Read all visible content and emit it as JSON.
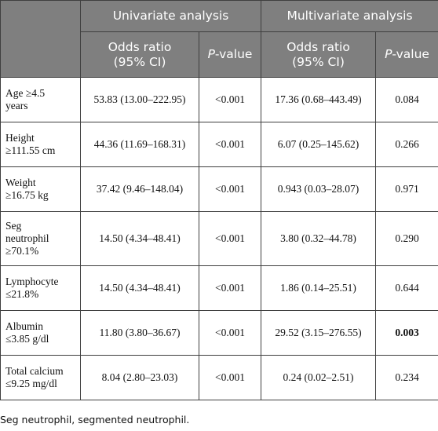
{
  "header": {
    "univariate": "Univariate analysis",
    "multivariate": "Multivariate analysis",
    "or_line1": "Odds ratio",
    "or_line2": "(95% CI)",
    "p_italic": "P",
    "p_rest": "-value"
  },
  "rows": [
    {
      "label_l1": "Age ≥4.5",
      "label_l2": "years",
      "label_l3": "",
      "uni_or": "53.83 (13.00–222.95)",
      "uni_p": "<0.001",
      "multi_or": "17.36 (0.68–443.49)",
      "multi_p": "0.084",
      "bold": false
    },
    {
      "label_l1": "Height",
      "label_l2": "≥111.55 cm",
      "label_l3": "",
      "uni_or": "44.36 (11.69–168.31)",
      "uni_p": "<0.001",
      "multi_or": "6.07 (0.25–145.62)",
      "multi_p": "0.266",
      "bold": false
    },
    {
      "label_l1": "Weight",
      "label_l2": "≥16.75 kg",
      "label_l3": "",
      "uni_or": "37.42 (9.46–148.04)",
      "uni_p": "<0.001",
      "multi_or": "0.943 (0.03–28.07)",
      "multi_p": "0.971",
      "bold": false
    },
    {
      "label_l1": "Seg",
      "label_l2": "neutrophil",
      "label_l3": "≥70.1%",
      "uni_or": "14.50 (4.34–48.41)",
      "uni_p": "<0.001",
      "multi_or": "3.80 (0.32–44.78)",
      "multi_p": "0.290",
      "bold": false
    },
    {
      "label_l1": "Lymphocyte",
      "label_l2": "≤21.8%",
      "label_l3": "",
      "uni_or": "14.50 (4.34–48.41)",
      "uni_p": "<0.001",
      "multi_or": "1.86 (0.14–25.51)",
      "multi_p": "0.644",
      "bold": false
    },
    {
      "label_l1": "Albumin",
      "label_l2": "≤3.85 g/dl",
      "label_l3": "",
      "uni_or": "11.80 (3.80–36.67)",
      "uni_p": "<0.001",
      "multi_or": "29.52 (3.15–276.55)",
      "multi_p": "0.003",
      "bold": true
    },
    {
      "label_l1": "Total calcium",
      "label_l2": "≤9.25 mg/dl",
      "label_l3": "",
      "uni_or": "8.04 (2.80–23.03)",
      "uni_p": "<0.001",
      "multi_or": "0.24 (0.02–2.51)",
      "multi_p": "0.234",
      "bold": false
    }
  ],
  "footnote": "Seg neutrophil, segmented neutrophil."
}
